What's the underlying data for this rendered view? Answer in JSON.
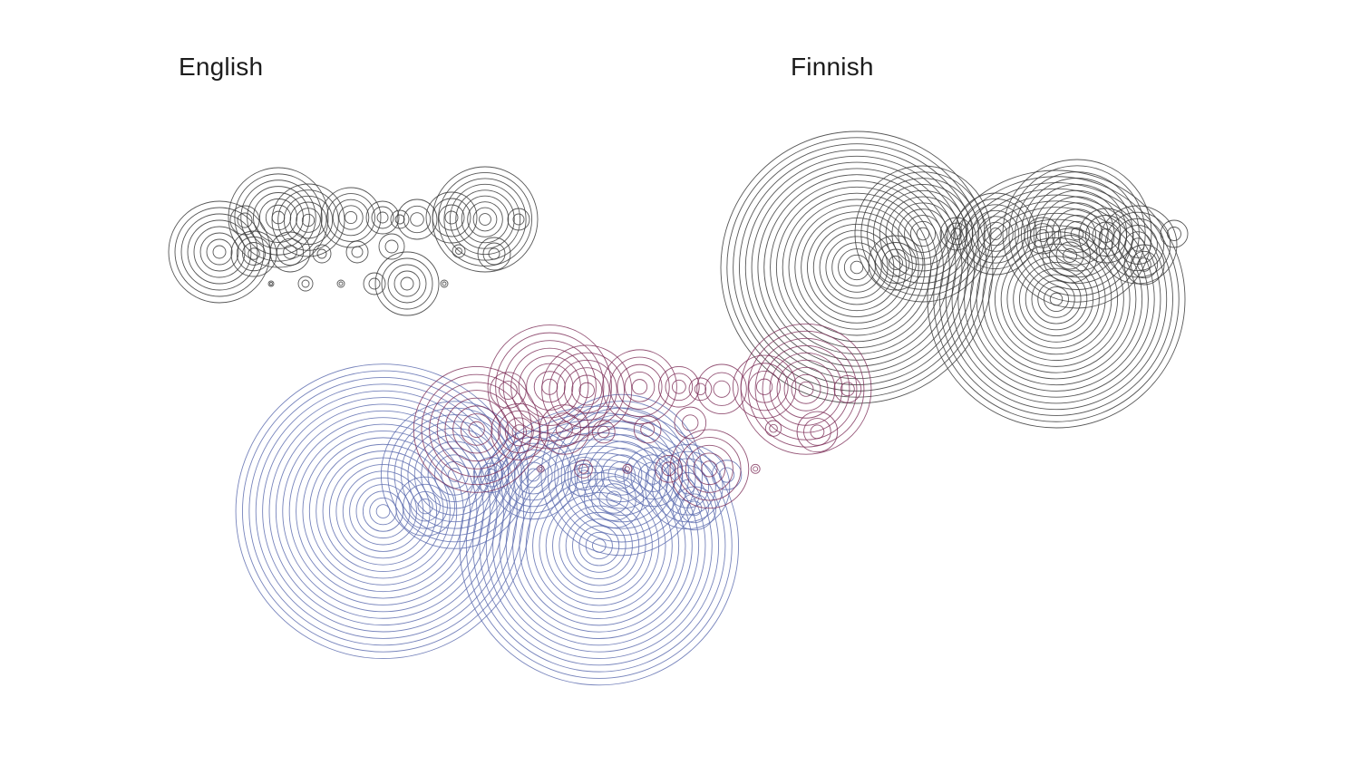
{
  "labels": {
    "english": "English",
    "finnish": "Finnish"
  },
  "colors": {
    "background": "#ffffff",
    "english_stroke": "#3a3a3a",
    "finnish_stroke": "#3a3a3a",
    "combined_english_stroke": "#7a2a55",
    "combined_finnish_stroke": "#5f6fb0"
  }
}
